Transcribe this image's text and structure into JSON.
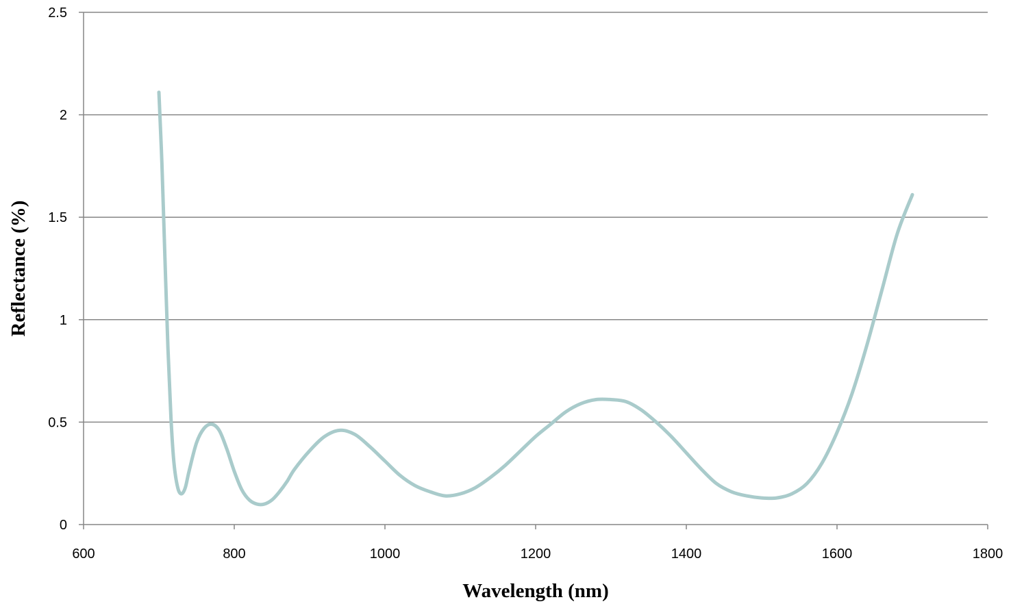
{
  "chart_data": {
    "type": "line",
    "title": "",
    "xlabel": "Wavelength (nm)",
    "ylabel": "Reflectance (%)",
    "xlim": [
      600,
      1800
    ],
    "ylim": [
      0,
      2.5
    ],
    "x_ticks": [
      600,
      800,
      1000,
      1200,
      1400,
      1600,
      1800
    ],
    "y_ticks": [
      0,
      0.5,
      1,
      1.5,
      2,
      2.5
    ],
    "x_tick_labels": [
      "600",
      "800",
      "1000",
      "1200",
      "1400",
      "1600",
      "1800"
    ],
    "y_tick_labels": [
      "0",
      "0.5",
      "1",
      "1.5",
      "2",
      "2.5"
    ],
    "grid": "horizontal",
    "legend": "none",
    "series": [
      {
        "color": "#a9cbcb",
        "x": [
          700,
          704,
          708,
          712,
          716,
          720,
          725,
          730,
          735,
          740,
          750,
          760,
          770,
          780,
          790,
          800,
          810,
          820,
          830,
          840,
          850,
          860,
          870,
          880,
          900,
          920,
          940,
          960,
          980,
          1000,
          1020,
          1040,
          1060,
          1080,
          1100,
          1120,
          1140,
          1160,
          1180,
          1200,
          1220,
          1240,
          1260,
          1280,
          1300,
          1320,
          1340,
          1360,
          1380,
          1400,
          1420,
          1440,
          1460,
          1480,
          1500,
          1520,
          1540,
          1560,
          1580,
          1600,
          1620,
          1640,
          1660,
          1680,
          1700
        ],
        "y": [
          2.11,
          1.76,
          1.3,
          0.86,
          0.52,
          0.3,
          0.18,
          0.15,
          0.18,
          0.26,
          0.4,
          0.47,
          0.49,
          0.46,
          0.37,
          0.26,
          0.17,
          0.12,
          0.1,
          0.1,
          0.12,
          0.16,
          0.21,
          0.27,
          0.36,
          0.43,
          0.46,
          0.44,
          0.38,
          0.31,
          0.24,
          0.19,
          0.16,
          0.14,
          0.15,
          0.18,
          0.23,
          0.29,
          0.36,
          0.43,
          0.49,
          0.55,
          0.59,
          0.61,
          0.61,
          0.6,
          0.56,
          0.5,
          0.43,
          0.35,
          0.27,
          0.2,
          0.16,
          0.14,
          0.13,
          0.13,
          0.15,
          0.2,
          0.3,
          0.45,
          0.64,
          0.88,
          1.15,
          1.42,
          1.61
        ]
      }
    ]
  }
}
